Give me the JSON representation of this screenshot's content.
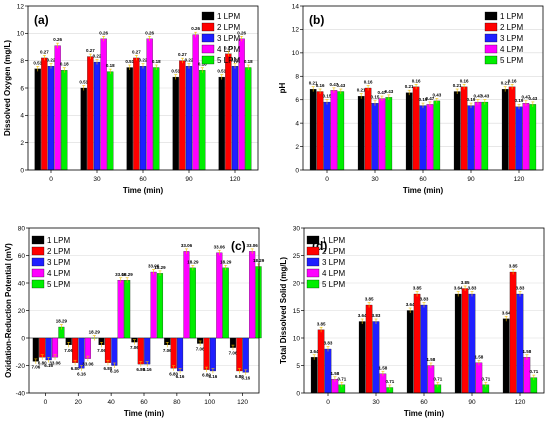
{
  "chart_data": [
    {
      "type": "bar",
      "panel_label": "(a)",
      "xlabel": "Time (min)",
      "ylabel": "Dissolved Oxygen (mg/L)",
      "categories": [
        "0",
        "30",
        "60",
        "90",
        "120"
      ],
      "ylim": [
        0,
        12
      ],
      "yticks": [
        "0",
        "2",
        "4",
        "6",
        "8",
        "10",
        "12"
      ],
      "legend_position": "top-right",
      "series": [
        {
          "name": "1 LPM",
          "color": "#000000",
          "values": [
            7.4,
            6.0,
            7.5,
            6.8,
            6.8
          ],
          "labels": [
            "0.51",
            "0.51",
            "0.51",
            "0.51",
            "0.51"
          ]
        },
        {
          "name": "2 LPM",
          "color": "#ff0000",
          "values": [
            8.2,
            8.3,
            8.2,
            8.0,
            8.5
          ],
          "labels": [
            "0.27",
            "0.27",
            "0.27",
            "0.27",
            "0.27"
          ]
        },
        {
          "name": "3 LPM",
          "color": "#1f1fff",
          "values": [
            7.6,
            7.9,
            7.6,
            7.6,
            7.6
          ],
          "labels": [
            "0.22",
            "0.22",
            "0.22",
            "0.22",
            "0.22"
          ]
        },
        {
          "name": "4 LPM",
          "color": "#ff00ff",
          "values": [
            9.1,
            9.6,
            9.6,
            9.9,
            9.6
          ],
          "labels": [
            "0.26",
            "0.26",
            "0.26",
            "0.26",
            "0.26"
          ]
        },
        {
          "name": "5 LPM",
          "color": "#00ee00",
          "values": [
            7.3,
            7.2,
            7.5,
            7.3,
            7.5
          ],
          "labels": [
            "0.18",
            "0.18",
            "0.18",
            "0.18",
            "0.18"
          ]
        }
      ]
    },
    {
      "type": "bar",
      "panel_label": "(b)",
      "xlabel": "Time (min)",
      "ylabel": "pH",
      "categories": [
        "0",
        "30",
        "60",
        "90",
        "120"
      ],
      "ylim": [
        0,
        14
      ],
      "yticks": [
        "0",
        "2",
        "4",
        "6",
        "8",
        "10",
        "12",
        "14"
      ],
      "legend_position": "top-right",
      "series": [
        {
          "name": "1 LPM",
          "color": "#000000",
          "values": [
            6.9,
            6.3,
            6.6,
            6.7,
            6.9
          ],
          "labels": [
            "0.21",
            "0.21",
            "0.21",
            "0.21",
            "0.21"
          ]
        },
        {
          "name": "2 LPM",
          "color": "#ff0000",
          "values": [
            6.7,
            7.0,
            7.1,
            7.1,
            7.1
          ],
          "labels": [
            "0.16",
            "0.16",
            "0.16",
            "0.16",
            "0.16"
          ]
        },
        {
          "name": "3 LPM",
          "color": "#1f1fff",
          "values": [
            5.8,
            5.7,
            5.5,
            5.5,
            5.4
          ],
          "labels": [
            "0.15",
            "0.15",
            "0.19",
            "0.19",
            "0.19"
          ]
        },
        {
          "name": "4 LPM",
          "color": "#ff00ff",
          "values": [
            6.8,
            6.1,
            5.6,
            5.8,
            5.7
          ],
          "labels": [
            "0.47",
            "0.47",
            "0.47",
            "0.47",
            "0.47"
          ]
        },
        {
          "name": "5 LPM",
          "color": "#00ee00",
          "values": [
            6.7,
            6.2,
            5.9,
            5.8,
            5.6
          ],
          "labels": [
            "0.43",
            "0.43",
            "0.43",
            "0.43",
            "0.43"
          ]
        }
      ]
    },
    {
      "type": "bar",
      "panel_label": "(c)",
      "xlabel": "Time (min)",
      "ylabel": "Oxidation-Reduction Potential (mV)",
      "categories": [
        "0",
        "20",
        "40",
        "60",
        "80",
        "100",
        "120"
      ],
      "category_values": [
        0,
        20,
        40,
        60,
        80,
        100,
        120
      ],
      "ylim": [
        -40,
        80
      ],
      "yticks": [
        "-40",
        "-20",
        "0",
        "20",
        "40",
        "60",
        "80"
      ],
      "legend_position": "top-left",
      "series": [
        {
          "name": "1 LPM",
          "color": "#000000",
          "x": [
            0,
            20,
            40,
            60,
            80,
            100,
            120
          ],
          "values": [
            -17,
            -5,
            -5,
            -3,
            -5,
            -4,
            -7
          ],
          "labels": [
            "7.06",
            "7.06",
            "7.06",
            "7.06",
            "7.06",
            "7.06",
            "7.06"
          ]
        },
        {
          "name": "2 LPM",
          "color": "#ff0000",
          "x": [
            0,
            20,
            40,
            60,
            80,
            100,
            120
          ],
          "values": [
            -14,
            -18,
            -18,
            -19,
            -22,
            -23,
            -24
          ],
          "labels": [
            "6.80",
            "6.80",
            "6.80",
            "6.80",
            "6.80",
            "6.80",
            "6.80"
          ]
        },
        {
          "name": "3 LPM",
          "color": "#1f1fff",
          "x": [
            0,
            20,
            40,
            60,
            80,
            100,
            120
          ],
          "values": [
            -16,
            -22,
            -20,
            -19,
            -24,
            -24,
            -25
          ],
          "labels": [
            "6.16",
            "6.16",
            "6.16",
            "6.16",
            "6.16",
            "6.16",
            "6.16"
          ]
        },
        {
          "name": "4 LPM",
          "color": "#ff00ff",
          "x": [
            0,
            20,
            40,
            60,
            80,
            100,
            120
          ],
          "values": [
            -14,
            -15,
            42,
            48,
            63,
            62,
            63
          ],
          "labels": [
            "33.06",
            "33.06",
            "33.06",
            "33.06",
            "33.06",
            "33.06",
            "33.06"
          ]
        },
        {
          "name": "5 LPM",
          "color": "#00ee00",
          "x": [
            0,
            20,
            40,
            60,
            80,
            100,
            120
          ],
          "values": [
            8,
            0,
            42,
            47,
            51,
            51,
            52
          ],
          "labels": [
            "18.29",
            "18.29",
            "18.29",
            "18.29",
            "18.29",
            "18.29",
            "18.29"
          ]
        }
      ]
    },
    {
      "type": "bar",
      "panel_label": "(d)",
      "xlabel": "Time (min)",
      "ylabel": "Total Dissolved Solid (mg/L)",
      "categories": [
        "0",
        "30",
        "60",
        "90",
        "120"
      ],
      "ylim": [
        0,
        30
      ],
      "yticks": [
        "0",
        "5",
        "10",
        "15",
        "20",
        "25",
        "30"
      ],
      "legend_position": "top-left",
      "series": [
        {
          "name": "1 LPM",
          "color": "#000000",
          "values": [
            6.5,
            13,
            15,
            18,
            13.5
          ],
          "labels": [
            "3.64",
            "3.64",
            "3.64",
            "3.64",
            "3.64"
          ]
        },
        {
          "name": "2 LPM",
          "color": "#ff0000",
          "values": [
            11.5,
            16,
            18,
            19,
            22
          ],
          "labels": [
            "3.85",
            "3.85",
            "3.85",
            "3.85",
            "3.85"
          ]
        },
        {
          "name": "3 LPM",
          "color": "#1f1fff",
          "values": [
            8,
            13,
            16,
            18,
            18
          ],
          "labels": [
            "3.83",
            "3.83",
            "3.83",
            "3.83",
            "3.83"
          ]
        },
        {
          "name": "4 LPM",
          "color": "#ff00ff",
          "values": [
            2.5,
            3.5,
            5,
            5.5,
            6.5
          ],
          "labels": [
            "1.58",
            "1.58",
            "1.58",
            "1.58",
            "1.58"
          ]
        },
        {
          "name": "5 LPM",
          "color": "#00ee00",
          "values": [
            1.5,
            1,
            1.5,
            1.5,
            2.8
          ],
          "labels": [
            "0.71",
            "0.71",
            "0.71",
            "0.71",
            "0.71"
          ]
        }
      ]
    }
  ]
}
